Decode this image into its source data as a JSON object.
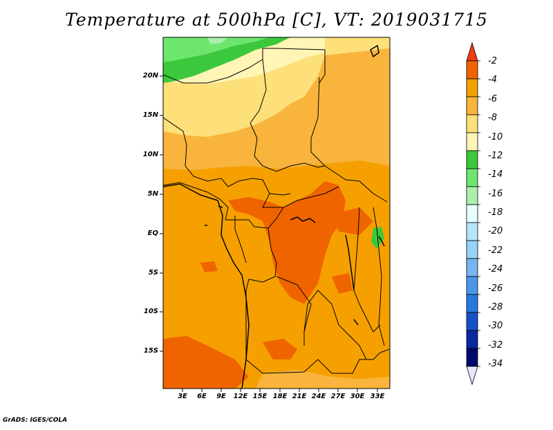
{
  "title": "Temperature at 500hPa [C], VT: 2019031715",
  "credit": "GrADS: IGES/COLA",
  "map": {
    "lat_ticks": [
      "20N",
      "15N",
      "10N",
      "5N",
      "EQ",
      "5S",
      "10S",
      "15S"
    ],
    "lon_ticks": [
      "3E",
      "6E",
      "9E",
      "12E",
      "15E",
      "18E",
      "21E",
      "24E",
      "27E",
      "30E",
      "33E"
    ]
  },
  "legend": {
    "labels": [
      "-2",
      "-4",
      "-6",
      "-8",
      "-10",
      "-12",
      "-14",
      "-16",
      "-18",
      "-20",
      "-22",
      "-24",
      "-26",
      "-28",
      "-30",
      "-32",
      "-34"
    ],
    "colors": [
      "#f03c14",
      "#f06400",
      "#f5a000",
      "#f8b43c",
      "#fde07a",
      "#fff5b4",
      "#3cc83c",
      "#6ee66e",
      "#aaf0aa",
      "#e6ffff",
      "#b4e6fa",
      "#96d2fa",
      "#78b4f0",
      "#4b96eb",
      "#2878e1",
      "#1450c8",
      "#0a28a0",
      "#000a6e",
      "#e6e6ff"
    ]
  }
}
